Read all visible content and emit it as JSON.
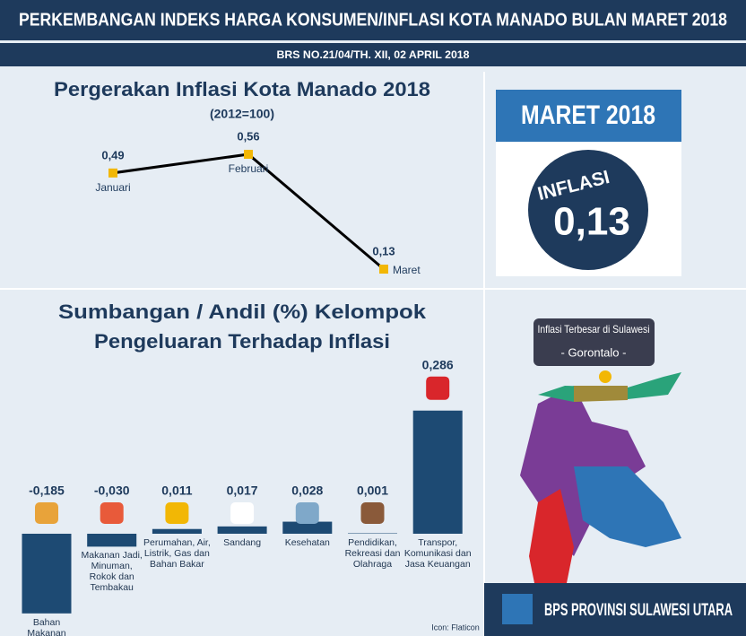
{
  "header": {
    "title": "PERKEMBANGAN INDEKS HARGA KONSUMEN/INFLASI KOTA MANADO BULAN MARET 2018",
    "subtitle": "BRS NO.21/04/TH. XII, 02 APRIL 2018"
  },
  "chart_data": [
    {
      "type": "line",
      "title": "Pergerakan Inflasi Kota Manado 2018",
      "subtitle": "(2012=100)",
      "categories": [
        "Januari",
        "Februari",
        "Maret"
      ],
      "values": [
        0.49,
        0.56,
        0.13
      ],
      "value_labels": [
        "0,49",
        "0,56",
        "0,13"
      ],
      "color": "#000000",
      "marker_color": "#f2b705"
    },
    {
      "type": "bar",
      "title": [
        "Sumbangan / Andil (%) Kelompok",
        "Pengeluaran Terhadap Inflasi"
      ],
      "categories": [
        "Bahan Makanan",
        "Makanan Jadi, Minuman, Rokok dan Tembakau",
        "Perumahan, Air, Listrik, Gas dan Bahan Bakar",
        "Sandang",
        "Kesehatan",
        "Pendidikan, Rekreasi dan Olahraga",
        "Transpor, Komunikasi dan Jasa Keuangan"
      ],
      "values": [
        -0.185,
        -0.03,
        0.011,
        0.017,
        0.028,
        0.001,
        0.286
      ],
      "value_labels": [
        "-0,185",
        "-0,030",
        "0,011",
        "0,017",
        "0,028",
        "0,001",
        "0,286"
      ],
      "color": "#1d4a73"
    }
  ],
  "highlight": {
    "period": "MARET 2018",
    "label": "INFLASI",
    "value": "0,13"
  },
  "map": {
    "title": "Inflasi Terbesar di Sulawesi",
    "region": "- Gorontalo -"
  },
  "footer": {
    "org": "BPS PROVINSI SULAWESI UTARA",
    "credit": "Icon: Flaticon"
  }
}
